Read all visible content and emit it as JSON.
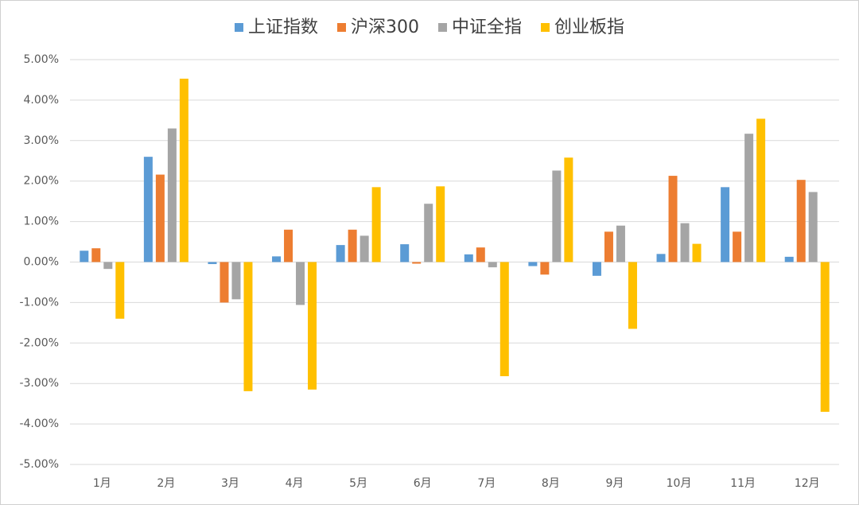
{
  "chart_data": {
    "type": "bar",
    "categories": [
      "1月",
      "2月",
      "3月",
      "4月",
      "5月",
      "6月",
      "7月",
      "8月",
      "9月",
      "10月",
      "11月",
      "12月"
    ],
    "series": [
      {
        "name": "上证指数",
        "color": "#5b9bd5",
        "values": [
          0.28,
          2.6,
          -0.05,
          0.14,
          0.42,
          0.44,
          0.19,
          -0.1,
          -0.34,
          0.2,
          1.85,
          0.13
        ]
      },
      {
        "name": "沪深300",
        "color": "#ed7d31",
        "values": [
          0.34,
          2.16,
          -1.0,
          0.8,
          0.8,
          -0.04,
          0.36,
          -0.31,
          0.75,
          2.13,
          0.75,
          2.03
        ]
      },
      {
        "name": "中证全指",
        "color": "#a5a5a5",
        "values": [
          -0.17,
          3.3,
          -0.92,
          -1.06,
          0.65,
          1.44,
          -0.13,
          2.26,
          0.9,
          0.96,
          3.17,
          1.73
        ]
      },
      {
        "name": "创业板指",
        "color": "#ffc000",
        "values": [
          -1.4,
          4.53,
          -3.19,
          -3.15,
          1.85,
          1.87,
          -2.82,
          2.58,
          -1.65,
          0.45,
          3.54,
          -3.7
        ]
      }
    ],
    "ylim": [
      -5,
      5
    ],
    "yticks": [
      {
        "value": -5,
        "label": "-5.00%"
      },
      {
        "value": -4,
        "label": "-4.00%"
      },
      {
        "value": -3,
        "label": "-3.00%"
      },
      {
        "value": -2,
        "label": "-2.00%"
      },
      {
        "value": -1,
        "label": "-1.00%"
      },
      {
        "value": 0,
        "label": "0.00%"
      },
      {
        "value": 1,
        "label": "1.00%"
      },
      {
        "value": 2,
        "label": "2.00%"
      },
      {
        "value": 3,
        "label": "3.00%"
      },
      {
        "value": 4,
        "label": "4.00%"
      },
      {
        "value": 5,
        "label": "5.00%"
      }
    ],
    "grid": true,
    "legend": "top"
  }
}
